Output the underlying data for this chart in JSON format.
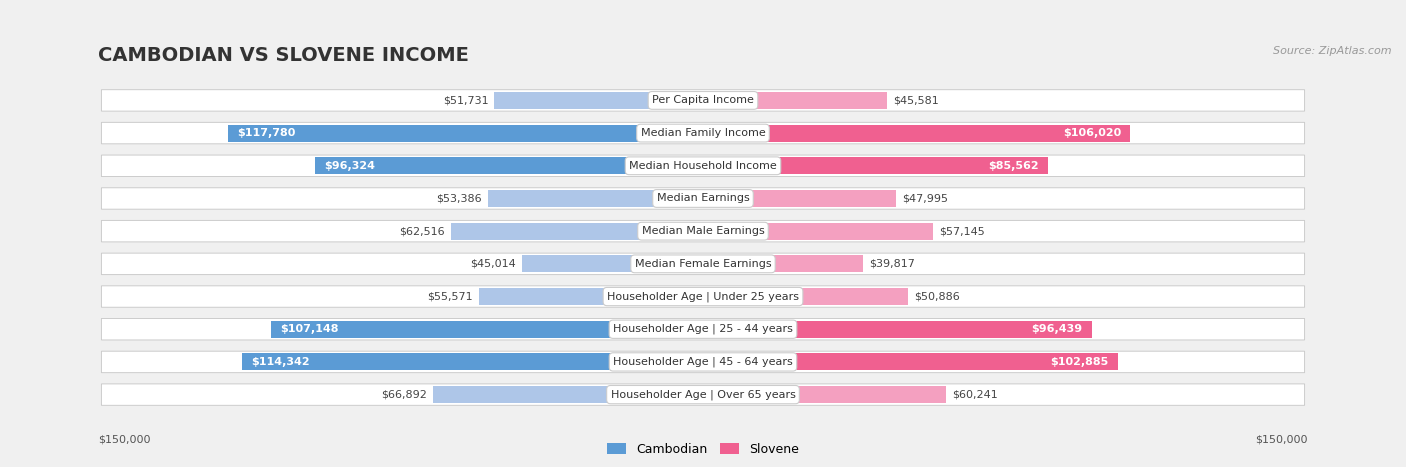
{
  "title": "CAMBODIAN VS SLOVENE INCOME",
  "source": "Source: ZipAtlas.com",
  "categories": [
    "Per Capita Income",
    "Median Family Income",
    "Median Household Income",
    "Median Earnings",
    "Median Male Earnings",
    "Median Female Earnings",
    "Householder Age | Under 25 years",
    "Householder Age | 25 - 44 years",
    "Householder Age | 45 - 64 years",
    "Householder Age | Over 65 years"
  ],
  "cambodian_values": [
    51731,
    117780,
    96324,
    53386,
    62516,
    45014,
    55571,
    107148,
    114342,
    66892
  ],
  "slovene_values": [
    45581,
    106020,
    85562,
    47995,
    57145,
    39817,
    50886,
    96439,
    102885,
    60241
  ],
  "max_value": 150000,
  "cambodian_color_light": "#aec6e8",
  "cambodian_color_dark": "#5b9bd5",
  "slovene_color_light": "#f4a0c0",
  "slovene_color_dark": "#f06090",
  "bg_color": "#f0f0f0",
  "row_bg": "#ffffff",
  "row_border": "#cccccc",
  "threshold_white_label": 80000,
  "xlabel_left": "$150,000",
  "xlabel_right": "$150,000",
  "title_fontsize": 14,
  "label_fontsize": 8,
  "value_fontsize": 8,
  "cat_fontsize": 8
}
